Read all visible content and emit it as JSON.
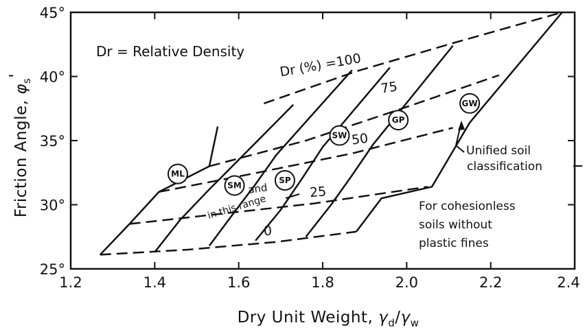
{
  "chart_data": {
    "type": "line",
    "title": "",
    "xlabel_main": "Dry Unit Weight, ",
    "xlabel_sym_num": "γ",
    "xlabel_sub_num": "d",
    "xlabel_slash": "/",
    "xlabel_sym_den": "γ",
    "xlabel_sub_den": "w",
    "ylabel_main": "Friction Angle, ",
    "ylabel_sym": "φ",
    "ylabel_sub": "s",
    "ylabel_prime": "'",
    "xlim": [
      1.2,
      2.4
    ],
    "ylim": [
      25,
      45
    ],
    "x_ticks": [
      1.2,
      1.4,
      1.6,
      1.8,
      2.0,
      2.2,
      2.4
    ],
    "x_tick_labels": [
      "1.2",
      "1.4",
      "1.6",
      "1.8",
      "2.0",
      "2.2",
      "2.4"
    ],
    "y_ticks": [
      25,
      30,
      35,
      40,
      45
    ],
    "y_tick_labels": [
      "25°",
      "30°",
      "35°",
      "40°",
      "45°"
    ],
    "grid": false,
    "legend": "none",
    "relative_density_series": [
      {
        "label": "100",
        "points": [
          [
            1.66,
            37.9
          ],
          [
            1.88,
            40.4
          ],
          [
            2.11,
            42.6
          ],
          [
            2.37,
            45.0
          ]
        ]
      },
      {
        "label": "75",
        "points": [
          [
            1.53,
            33.0
          ],
          [
            1.76,
            35.0
          ],
          [
            1.98,
            37.4
          ],
          [
            2.22,
            40.1
          ]
        ]
      },
      {
        "label": "50",
        "points": [
          [
            1.41,
            31.0
          ],
          [
            1.63,
            32.4
          ],
          [
            1.87,
            34.0
          ],
          [
            2.11,
            36.0
          ]
        ]
      },
      {
        "label": "25",
        "points": [
          [
            1.34,
            28.5
          ],
          [
            1.56,
            29.3
          ],
          [
            1.78,
            30.1
          ],
          [
            2.05,
            31.4
          ]
        ]
      },
      {
        "label": "0",
        "points": [
          [
            1.27,
            26.1
          ],
          [
            1.48,
            26.5
          ],
          [
            1.69,
            27.1
          ],
          [
            1.88,
            27.9
          ]
        ]
      }
    ],
    "soil_lines": [
      {
        "name": "ML",
        "points": [
          [
            1.27,
            26.1
          ],
          [
            1.34,
            28.5
          ],
          [
            1.41,
            31.0
          ],
          [
            1.53,
            33.0
          ],
          [
            1.55,
            36.1
          ]
        ]
      },
      {
        "name": "SM",
        "points": [
          [
            1.4,
            26.3
          ],
          [
            1.46,
            28.8
          ],
          [
            1.53,
            31.2
          ],
          [
            1.6,
            33.5
          ],
          [
            1.73,
            37.8
          ]
        ]
      },
      {
        "name": "SP",
        "points": [
          [
            1.53,
            26.8
          ],
          [
            1.58,
            29.0
          ],
          [
            1.64,
            31.6
          ],
          [
            1.69,
            33.9
          ],
          [
            1.87,
            40.5
          ]
        ]
      },
      {
        "name": "SW",
        "points": [
          [
            1.64,
            27.2
          ],
          [
            1.7,
            29.6
          ],
          [
            1.75,
            32.0
          ],
          [
            1.8,
            34.5
          ],
          [
            1.96,
            40.7
          ]
        ]
      },
      {
        "name": "GP",
        "points": [
          [
            1.76,
            27.5
          ],
          [
            1.82,
            30.0
          ],
          [
            1.87,
            32.3
          ],
          [
            1.92,
            34.7
          ],
          [
            2.11,
            42.4
          ]
        ]
      },
      {
        "name": "GW",
        "points": [
          [
            1.88,
            27.9
          ],
          [
            1.94,
            30.5
          ],
          [
            2.06,
            31.4
          ],
          [
            2.15,
            36.4
          ],
          [
            2.37,
            45.0
          ]
        ]
      }
    ],
    "soil_markers": [
      {
        "label": "ML",
        "x": 1.455,
        "y": 32.4
      },
      {
        "label": "SM",
        "x": 1.59,
        "y": 31.5
      },
      {
        "label": "SP",
        "x": 1.71,
        "y": 31.9
      },
      {
        "label": "SW",
        "x": 1.84,
        "y": 35.4
      },
      {
        "label": "GP",
        "x": 1.98,
        "y": 36.6
      },
      {
        "label": "GW",
        "x": 2.15,
        "y": 37.9
      }
    ],
    "family_label_prefix": "Dr (%) =",
    "annotations": {
      "relative_density_note": "Dr = Relative Density",
      "and_text": "and",
      "range_text": "in this range",
      "unified_1": "Unified soil",
      "unified_2": "classification",
      "cohesionless_1": "For cohesionless",
      "cohesionless_2": "soils without",
      "cohesionless_3": "plastic fines"
    }
  }
}
